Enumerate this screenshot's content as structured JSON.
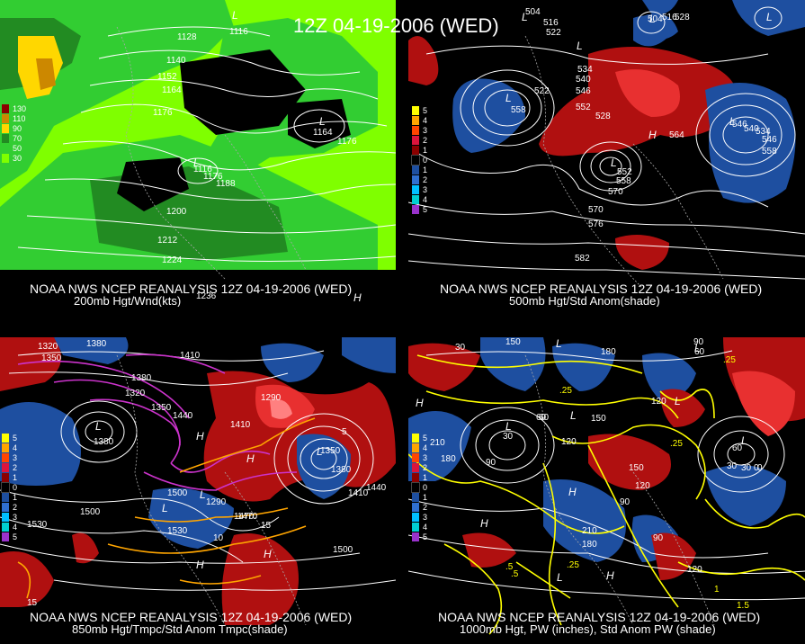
{
  "title": "12Z 04-19-2006 (WED)",
  "panels": [
    {
      "id": "p200",
      "caption_line1": "NOAA NWS NCEP REANALYSIS 12Z 04-19-2006 (WED)",
      "caption_line2": "200mb Hgt/Wnd(kts)",
      "legend": [
        {
          "label": "130",
          "color": "#8b0000"
        },
        {
          "label": "110",
          "color": "#cc8800"
        },
        {
          "label": "90",
          "color": "#ffd700"
        },
        {
          "label": "70",
          "color": "#228b22"
        },
        {
          "label": "50",
          "color": "#32cd32"
        },
        {
          "label": "30",
          "color": "#7fff00"
        }
      ],
      "contour_labels": [
        "1128",
        "1116",
        "1140",
        "1152",
        "1164",
        "1176",
        "1164",
        "1176",
        "1188",
        "1176",
        "1200",
        "1212",
        "1224",
        "1116",
        "1236"
      ],
      "center_labels": [
        "L",
        "L",
        "L",
        "H"
      ]
    },
    {
      "id": "p500",
      "caption_line1": "NOAA NWS NCEP REANALYSIS 12Z 04-19-2006 (WED)",
      "caption_line2": "500mb Hgt/Std Anom(shade)",
      "legend": [
        {
          "label": "5",
          "color": "#ffff00"
        },
        {
          "label": "4",
          "color": "#ffa500"
        },
        {
          "label": "3",
          "color": "#ff4500"
        },
        {
          "label": "2",
          "color": "#dc143c"
        },
        {
          "label": "1",
          "color": "#8b0000"
        },
        {
          "label": "0",
          "color": "#000000"
        },
        {
          "label": "1",
          "color": "#1e4fa0"
        },
        {
          "label": "2",
          "color": "#2f6fd0"
        },
        {
          "label": "3",
          "color": "#00bfff"
        },
        {
          "label": "4",
          "color": "#00ced1"
        },
        {
          "label": "5",
          "color": "#9932cc"
        }
      ],
      "contour_labels": [
        "504",
        "516",
        "522",
        "504",
        "516",
        "528",
        "534",
        "540",
        "546",
        "552",
        "558",
        "522",
        "528",
        "564",
        "570",
        "558",
        "552",
        "546",
        "540",
        "534",
        "546",
        "558",
        "570",
        "576",
        "582"
      ],
      "center_labels": [
        "L",
        "L",
        "L",
        "L",
        "H",
        "L",
        "L",
        "L"
      ]
    },
    {
      "id": "p850",
      "caption_line1": "NOAA NWS NCEP REANALYSIS 12Z 04-19-2006 (WED)",
      "caption_line2": "850mb Hgt/Tmpc/Std Anom Tmpc(shade)",
      "legend": [
        {
          "label": "5",
          "color": "#ffff00"
        },
        {
          "label": "4",
          "color": "#ffa500"
        },
        {
          "label": "3",
          "color": "#ff4500"
        },
        {
          "label": "2",
          "color": "#dc143c"
        },
        {
          "label": "1",
          "color": "#8b0000"
        },
        {
          "label": "0",
          "color": "#000000"
        },
        {
          "label": "1",
          "color": "#1e4fa0"
        },
        {
          "label": "2",
          "color": "#2f6fd0"
        },
        {
          "label": "3",
          "color": "#00bfff"
        },
        {
          "label": "4",
          "color": "#00ced1"
        },
        {
          "label": "5",
          "color": "#9932cc"
        }
      ],
      "contour_labels": [
        "1320",
        "1350",
        "1380",
        "1410",
        "1320",
        "1350",
        "1440",
        "1290",
        "1380",
        "1410",
        "1500",
        "1530",
        "1470",
        "1500",
        "1530",
        "1410",
        "1440",
        "1380",
        "1350",
        "1500",
        "1470",
        "1290",
        "1380",
        "10",
        "15",
        "15",
        "5"
      ],
      "center_labels": [
        "L",
        "L",
        "H",
        "H",
        "L",
        "L",
        "H",
        "H"
      ]
    },
    {
      "id": "p1000",
      "caption_line1": "NOAA NWS NCEP REANALYSIS 12Z 04-19-2006 (WED)",
      "caption_line2": "1000mb Hgt, PW (inches), Std Anom PW (shade)",
      "legend": [
        {
          "label": "5",
          "color": "#ffff00"
        },
        {
          "label": "4",
          "color": "#ffa500"
        },
        {
          "label": "3",
          "color": "#ff4500"
        },
        {
          "label": "2",
          "color": "#dc143c"
        },
        {
          "label": "1",
          "color": "#8b0000"
        },
        {
          "label": "0",
          "color": "#000000"
        },
        {
          "label": "1",
          "color": "#1e4fa0"
        },
        {
          "label": "2",
          "color": "#2f6fd0"
        },
        {
          "label": "3",
          "color": "#00bfff"
        },
        {
          "label": "4",
          "color": "#00ced1"
        },
        {
          "label": "5",
          "color": "#9932cc"
        }
      ],
      "contour_labels": [
        "150",
        "180",
        "30",
        "60",
        "90",
        "120",
        "150",
        "60",
        "30",
        "0",
        "30",
        "60",
        "90",
        "120",
        "180",
        "210",
        "180",
        "150",
        "120",
        "90",
        "60",
        "30",
        "0",
        "210",
        "90",
        "120",
        ".25",
        ".25",
        ".25",
        ".5",
        ".25",
        "1",
        "1.5",
        ".5"
      ],
      "center_labels": [
        "L",
        "L",
        "L",
        "H",
        "L",
        "L",
        "H",
        "H",
        "H",
        "L",
        "L"
      ]
    }
  ],
  "colors": {
    "wind_light": "#7fff00",
    "wind_mid": "#32cd32",
    "wind_dark": "#228b22",
    "wind_jet": "#ffd700",
    "anom_pos": "#b01010",
    "anom_pos_strong": "#e83030",
    "anom_neg": "#1e4fa0",
    "temp_contour": "#cc33cc",
    "temp_contour_warm": "#ffa500",
    "pw_contour": "#ffff00",
    "height_contour": "#ffffff"
  }
}
